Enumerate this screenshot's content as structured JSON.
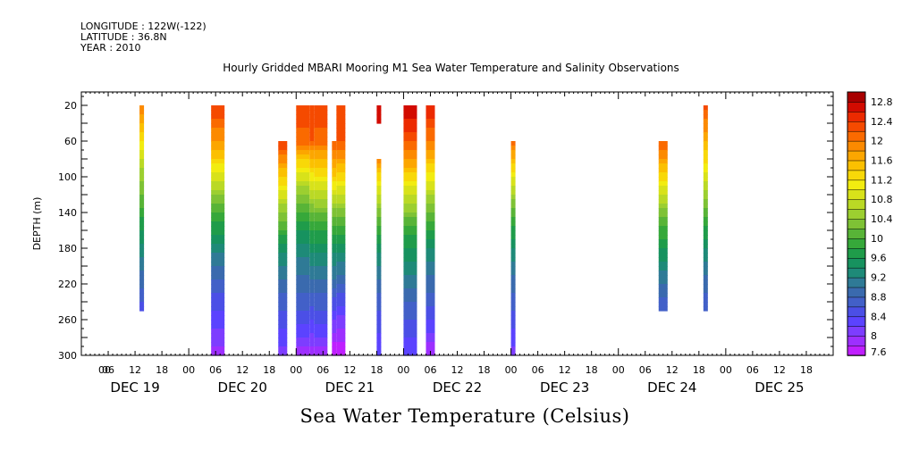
{
  "header": {
    "longitude": "LONGITUDE : 122W(-122)",
    "latitude": "LATITUDE : 36.8N",
    "year": "YEAR : 2010"
  },
  "chart_data": {
    "type": "heatmap",
    "title": "Hourly Gridded MBARI Mooring M1 Sea Water Temperature and Salinity Observations",
    "xlabel": "Sea Water Temperature (Celsius)",
    "ylabel": "DEPTH (m)",
    "y_axis": {
      "ticks": [
        20,
        60,
        100,
        140,
        180,
        220,
        260,
        300
      ],
      "ylim": [
        300,
        5
      ],
      "inverted": true
    },
    "x_axis": {
      "hour_ticks": [
        "00",
        "06",
        "12",
        "18",
        "00",
        "06",
        "12",
        "18",
        "00",
        "06",
        "12",
        "18",
        "00",
        "06",
        "12",
        "18",
        "00",
        "06",
        "12",
        "18",
        "00",
        "06",
        "12",
        "18",
        "00",
        "06",
        "12",
        "18"
      ],
      "day_labels": [
        "DEC 19",
        "DEC 20",
        "DEC 21",
        "DEC 22",
        "DEC 23",
        "DEC 24",
        "DEC 25"
      ],
      "start": "2010-12-19 00:00",
      "end": "2010-12-26 00:00"
    },
    "colorbar": {
      "labels": [
        "12.8",
        "12.4",
        "12",
        "11.6",
        "11.2",
        "10.8",
        "10.4",
        "10",
        "9.6",
        "9.2",
        "8.8",
        "8.4",
        "8",
        "7.6"
      ],
      "levels": [
        7.6,
        7.8,
        8.0,
        8.2,
        8.4,
        8.6,
        8.8,
        9.0,
        9.2,
        9.4,
        9.6,
        9.8,
        10.0,
        10.2,
        10.4,
        10.6,
        10.8,
        11.0,
        11.2,
        11.4,
        11.6,
        11.8,
        12.0,
        12.2,
        12.4,
        12.6,
        12.8,
        13.0
      ],
      "colors": [
        "#bf1fff",
        "#9d2fff",
        "#7d3dff",
        "#5b43ff",
        "#4b4fe6",
        "#4260c8",
        "#3a6aae",
        "#2f7a96",
        "#1e8a78",
        "#17925f",
        "#1f9c4a",
        "#36a83a",
        "#58b437",
        "#7ec235",
        "#9ccf30",
        "#bad925",
        "#d8e21a",
        "#f2ec10",
        "#f8d808",
        "#fbc000",
        "#fca600",
        "#fc8a00",
        "#fa6a00",
        "#f54a00",
        "#ec2a00",
        "#d20b00",
        "#a80000"
      ]
    },
    "segments": [
      {
        "t0": 13,
        "t1": 14,
        "depth_top": 20,
        "depth_bottom": 250,
        "temps": [
          [
            20,
            12.0
          ],
          [
            90,
            10.6
          ],
          [
            140,
            9.9
          ],
          [
            180,
            9.3
          ],
          [
            250,
            8.5
          ]
        ]
      },
      {
        "t0": 29,
        "t1": 32,
        "depth_top": 20,
        "depth_bottom": 300,
        "temps": [
          [
            20,
            12.4
          ],
          [
            60,
            11.8
          ],
          [
            100,
            10.9
          ],
          [
            140,
            10.0
          ],
          [
            180,
            9.3
          ],
          [
            220,
            8.7
          ],
          [
            260,
            8.3
          ],
          [
            300,
            7.9
          ]
        ]
      },
      {
        "t0": 44,
        "t1": 46,
        "depth_top": 60,
        "depth_bottom": 300,
        "temps": [
          [
            60,
            12.4
          ],
          [
            100,
            11.4
          ],
          [
            140,
            10.4
          ],
          [
            180,
            9.5
          ],
          [
            220,
            8.9
          ],
          [
            260,
            8.5
          ],
          [
            300,
            8.1
          ]
        ]
      },
      {
        "t0": 48,
        "t1": 51,
        "depth_top": 20,
        "depth_bottom": 300,
        "temps": [
          [
            20,
            12.4
          ],
          [
            60,
            12.1
          ],
          [
            80,
            11.4
          ],
          [
            120,
            10.4
          ],
          [
            160,
            9.6
          ],
          [
            200,
            9.1
          ],
          [
            240,
            8.7
          ],
          [
            280,
            8.2
          ],
          [
            300,
            7.8
          ]
        ]
      },
      {
        "t0": 51,
        "t1": 52,
        "depth_top": 20,
        "depth_bottom": 300,
        "temps": [
          [
            20,
            12.4
          ],
          [
            55,
            12.3
          ],
          [
            70,
            11.8
          ],
          [
            110,
            10.9
          ],
          [
            150,
            10.0
          ],
          [
            190,
            9.3
          ],
          [
            230,
            8.8
          ],
          [
            270,
            8.3
          ],
          [
            300,
            7.8
          ]
        ]
      },
      {
        "t0": 52,
        "t1": 55,
        "depth_top": 20,
        "depth_bottom": 300,
        "temps": [
          [
            20,
            12.4
          ],
          [
            60,
            12.1
          ],
          [
            80,
            11.6
          ],
          [
            120,
            10.7
          ],
          [
            160,
            9.8
          ],
          [
            200,
            9.2
          ],
          [
            240,
            8.7
          ],
          [
            280,
            8.2
          ],
          [
            300,
            7.8
          ]
        ]
      },
      {
        "t0": 56,
        "t1": 57,
        "depth_top": 60,
        "depth_bottom": 300,
        "temps": [
          [
            60,
            12.2
          ],
          [
            100,
            11.4
          ],
          [
            140,
            10.3
          ],
          [
            180,
            9.5
          ],
          [
            220,
            8.9
          ],
          [
            260,
            8.2
          ],
          [
            300,
            7.6
          ]
        ]
      },
      {
        "t0": 57,
        "t1": 59,
        "depth_top": 20,
        "depth_bottom": 300,
        "temps": [
          [
            20,
            12.4
          ],
          [
            60,
            12.2
          ],
          [
            100,
            11.3
          ],
          [
            140,
            10.3
          ],
          [
            180,
            9.5
          ],
          [
            220,
            8.8
          ],
          [
            260,
            8.1
          ],
          [
            300,
            7.6
          ]
        ]
      },
      {
        "t0": 66,
        "t1": 67,
        "depth_top": 20,
        "depth_bottom": 40,
        "temps": [
          [
            20,
            12.6
          ],
          [
            40,
            12.6
          ]
        ]
      },
      {
        "t0": 66,
        "t1": 67,
        "depth_top": 80,
        "depth_bottom": 300,
        "temps": [
          [
            80,
            12.0
          ],
          [
            100,
            11.3
          ],
          [
            140,
            10.3
          ],
          [
            180,
            9.5
          ],
          [
            220,
            8.9
          ],
          [
            260,
            8.5
          ],
          [
            300,
            8.2
          ]
        ]
      },
      {
        "t0": 72,
        "t1": 75,
        "depth_top": 20,
        "depth_bottom": 300,
        "temps": [
          [
            20,
            12.8
          ],
          [
            50,
            12.4
          ],
          [
            80,
            11.8
          ],
          [
            120,
            10.8
          ],
          [
            160,
            9.9
          ],
          [
            200,
            9.3
          ],
          [
            240,
            8.8
          ],
          [
            280,
            8.4
          ],
          [
            300,
            8.2
          ]
        ]
      },
      {
        "t0": 77,
        "t1": 79,
        "depth_top": 20,
        "depth_bottom": 300,
        "temps": [
          [
            20,
            12.6
          ],
          [
            60,
            12.0
          ],
          [
            100,
            11.1
          ],
          [
            140,
            10.2
          ],
          [
            180,
            9.4
          ],
          [
            220,
            8.9
          ],
          [
            260,
            8.4
          ],
          [
            300,
            7.8
          ]
        ]
      },
      {
        "t0": 96,
        "t1": 97,
        "depth_top": 60,
        "depth_bottom": 300,
        "temps": [
          [
            60,
            12.1
          ],
          [
            100,
            11.0
          ],
          [
            140,
            10.1
          ],
          [
            180,
            9.4
          ],
          [
            220,
            8.9
          ],
          [
            260,
            8.5
          ],
          [
            300,
            8.1
          ]
        ]
      },
      {
        "t0": 129,
        "t1": 131,
        "depth_top": 60,
        "depth_bottom": 250,
        "temps": [
          [
            60,
            12.2
          ],
          [
            100,
            11.3
          ],
          [
            140,
            10.3
          ],
          [
            180,
            9.6
          ],
          [
            220,
            9.0
          ],
          [
            250,
            8.6
          ]
        ]
      },
      {
        "t0": 139,
        "t1": 140,
        "depth_top": 20,
        "depth_bottom": 250,
        "temps": [
          [
            20,
            12.3
          ],
          [
            60,
            11.6
          ],
          [
            100,
            10.9
          ],
          [
            140,
            10.1
          ],
          [
            180,
            9.4
          ],
          [
            220,
            8.9
          ],
          [
            250,
            8.6
          ]
        ]
      }
    ],
    "grid": false,
    "legend": "colorbar-right"
  }
}
